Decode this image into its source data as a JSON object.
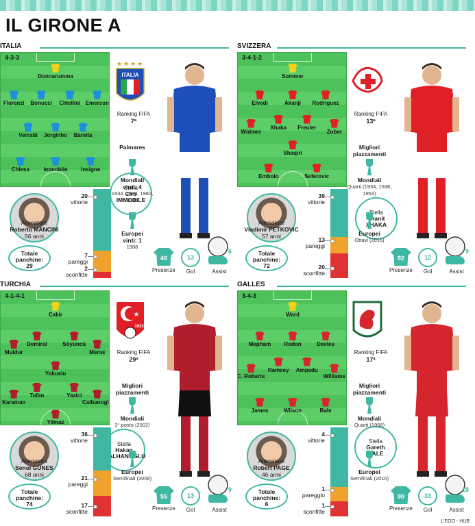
{
  "title": "IL GIRONE A",
  "footer": "L'EGO - HUB",
  "colors": {
    "accent": "#3fb8a3",
    "wins": "#3fb8a3",
    "draws": "#f0a22c",
    "losses": "#e03232",
    "pitch": "#4dc15a",
    "keeper": "#f2d21b"
  },
  "labels": {
    "ranking": "Ranking FIFA",
    "stella": "Stella",
    "allenatore": "Allenatore",
    "totale": "Totale",
    "panchine": "panchine:",
    "vittorie": "vittorie",
    "pareggi": "pareggi",
    "pareggio": "pareggio",
    "sconfitte": "sconfitte",
    "presenze": "Presenze",
    "gol": "Gol",
    "assist": "Assist",
    "palmares": "Palmares",
    "migliori": "Migliori piazzamenti",
    "mondiali": "Mondiali",
    "europei": "Europei"
  },
  "groups": [
    {
      "name": "ITALIA",
      "formation": "4-3-3",
      "kit": "#1e8fdc",
      "crest": "italy-crest-icon",
      "crest_text": "ITALIA",
      "players": [
        "Donnarumma",
        "Florenzi",
        "Bonucci",
        "Chiellini",
        "Emerson",
        "Verratti",
        "Jorginho",
        "Barella",
        "Chiesa",
        "Immobile",
        "Insigne"
      ],
      "fifa_rank": "7ª",
      "star": {
        "first": "Ciro",
        "last": "IMMOBILE",
        "presenze": "46",
        "gol": "13",
        "assist": "6"
      },
      "coach": {
        "name": "Roberto MANCINI",
        "age": "56 anni"
      },
      "panchine": "29",
      "record": {
        "wins": "20",
        "draws": "7",
        "losses": "2",
        "draw_label": "pareggi"
      },
      "palm_head": "Palmares",
      "mondiali": {
        "line1": "Mondiali",
        "line2": "vinti: 4",
        "detail": "1934, 1938, 1982, 2006"
      },
      "europei": {
        "line1": "Europei",
        "line2": "vinti: 1",
        "detail": "1968"
      }
    },
    {
      "name": "SVIZZERA",
      "formation": "3-4-1-2",
      "kit": "#e01f26",
      "crest": "swiss-crest-icon",
      "players": [
        "Sommer",
        "Elvedi",
        "Akanji",
        "Rodriguez",
        "Widmer",
        "Xhaka",
        "Freuler",
        "Zuber",
        "Shaqiri",
        "Embolo",
        "Seferovic"
      ],
      "fifa_rank": "13ª",
      "star": {
        "first": "Granit",
        "last": "XHAKA",
        "presenze": "92",
        "gol": "12",
        "assist": "9"
      },
      "coach": {
        "name": "Vladimir PETKOVIC",
        "age": "57 anni"
      },
      "panchine": "72",
      "record": {
        "wins": "39",
        "draws": "13",
        "losses": "20",
        "draw_label": "pareggi"
      },
      "palm_head": "Migliori piazzamenti",
      "mondiali": {
        "line1": "Mondiali",
        "line2": "",
        "detail": "Quarti (1934, 1938, 1954)"
      },
      "europei": {
        "line1": "Europei",
        "line2": "",
        "detail": "Ottavi (2016)"
      }
    },
    {
      "name": "TURCHIA",
      "formation": "4-1-4-1",
      "kit": "#b01e2e",
      "crest": "turkey-crest-icon",
      "crest_text": "1923",
      "players": [
        "Cakir",
        "Muldur",
        "Demiral",
        "Söyüncü",
        "Meras",
        "Yokuslu",
        "Karaman",
        "Tufan",
        "Yazici",
        "Calhanoglu",
        "Yilmaz"
      ],
      "fifa_rank": "29ª",
      "star": {
        "first": "Hakan",
        "last": "CALHANOGLU",
        "presenze": "55",
        "gol": "13",
        "assist": "9"
      },
      "coach": {
        "name": "Senol GÜNES",
        "age": "68 anni"
      },
      "panchine": "74",
      "record": {
        "wins": "36",
        "draws": "21",
        "losses": "17",
        "draw_label": "pareggi"
      },
      "palm_head": "Migliori piazzamenti",
      "mondiali": {
        "line1": "Mondiali",
        "line2": "",
        "detail": "3° posto (2002)"
      },
      "europei": {
        "line1": "Europei",
        "line2": "",
        "detail": "Semifinali (2008)"
      }
    },
    {
      "name": "GALLES",
      "formation": "3-4-3",
      "kit": "#d4262c",
      "crest": "wales-crest-icon",
      "players": [
        "Ward",
        "Mepham",
        "Rodon",
        "Davies",
        "C. Roberts",
        "Ramsey",
        "Ampadu",
        "Williams",
        "James",
        "Wilson",
        "Bale"
      ],
      "fifa_rank": "17ª",
      "star": {
        "first": "Gareth",
        "last": "BALE",
        "presenze": "90",
        "gol": "33",
        "assist": "18"
      },
      "coach": {
        "name": "Robert PAGE",
        "age": "46 anni"
      },
      "panchine": "6",
      "record": {
        "wins": "4",
        "draws": "1",
        "losses": "1",
        "draw_label": "pareggio"
      },
      "palm_head": "Migliori piazzamenti",
      "mondiali": {
        "line1": "Mondiali",
        "line2": "",
        "detail": "Quarti (1958)"
      },
      "europei": {
        "line1": "Europei",
        "line2": "",
        "detail": "Semifinali (2016)"
      }
    }
  ]
}
